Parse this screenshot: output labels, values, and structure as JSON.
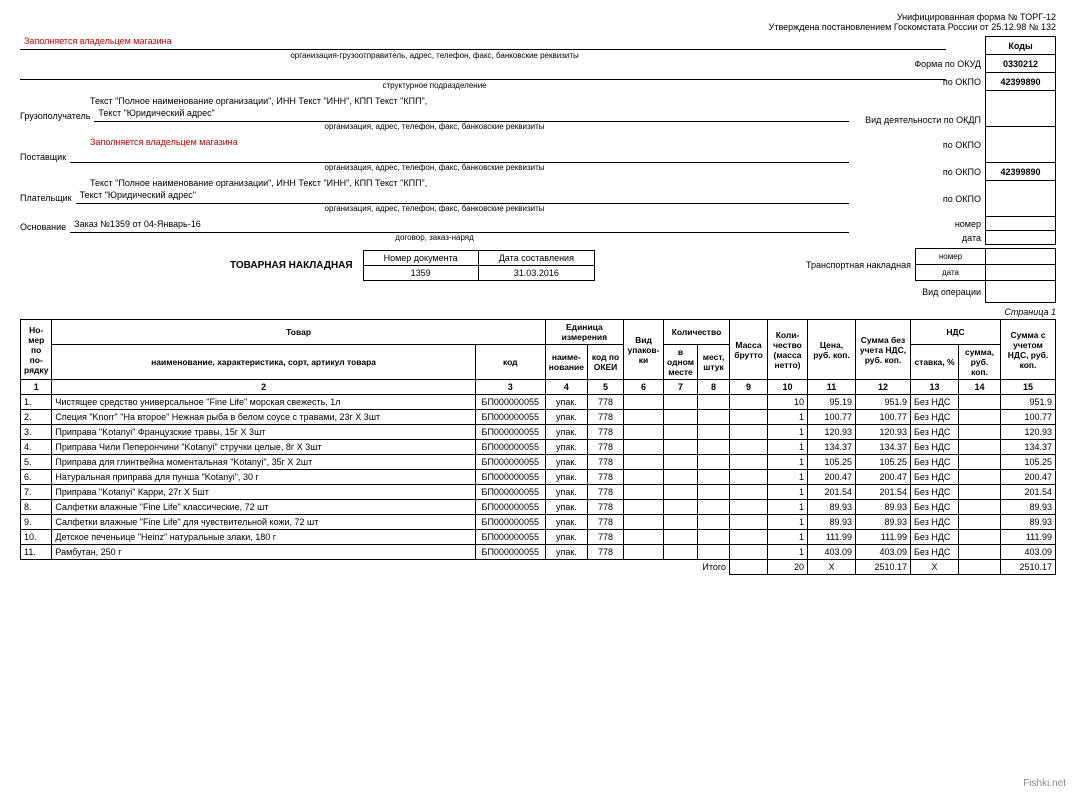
{
  "header": {
    "form_line1": "Унифицированная форма № ТОРГ-12",
    "form_line2": "Утверждена постановлением Госкомстата России от 25.12.98 № 132",
    "codes_title": "Коды",
    "okud_label": "Форма по ОКУД",
    "okud_value": "0330212",
    "okpo_label": "по ОКПО",
    "okpo_value": "42399890",
    "activity_label": "Вид деятельности по ОКДП",
    "okpo2_label": "по ОКПО",
    "okpo3_label": "по ОКПО",
    "okpo3_value": "42399890",
    "okpo4_label": "по ОКПО",
    "number_label": "номер",
    "date_label": "дата",
    "operation_label": "Вид операции"
  },
  "body": {
    "fill_owner": "Заполняется владельцем магазина",
    "org_sender_sub": "организация-грузоотправитель, адрес, телефон, факс, банковские реквизиты",
    "struct_sub": "структурное подразделение",
    "consignee_label": "Грузополучатель",
    "org_full": "Текст \"Полное наименование организации\", ИНН Текст \"ИНН\", КПП Текст \"КПП\",",
    "legal_addr": "Текст \"Юридический адрес\"",
    "org_sub": "организация, адрес, телефон, факс, банковские реквизиты",
    "supplier_label": "Поставщик",
    "payer_label": "Плательщик",
    "basis_label": "Основание",
    "basis_value": "Заказ №1359 от 04-Январь-16",
    "contract_sub": "договор, заказ-наряд",
    "docnum_h1": "Номер документа",
    "docnum_h2": "Дата составления",
    "docnum_v1": "1359",
    "docnum_v2": "31.03.2016",
    "doc_title": "ТОВАРНАЯ НАКЛАДНАЯ",
    "transport_label": "Транспортная накладная"
  },
  "page_label": "Страница 1",
  "table": {
    "headers": {
      "num": "Но-мер по по-рядку",
      "goods": "Товар",
      "name": "наименование, характеристика, сорт, артикул товара",
      "code": "код",
      "unit": "Единица измерения",
      "unit_name": "наиме-нование",
      "okei": "код по ОКЕИ",
      "pack": "Вид упаков-ки",
      "qty": "Количество",
      "qty_one": "в одном месте",
      "qty_places": "мест, штук",
      "mass_gross": "Масса брутто",
      "qty_net": "Коли-чество (масса нетто)",
      "price": "Цена, руб. коп.",
      "sum_novat": "Сумма без учета НДС, руб. коп.",
      "vat": "НДС",
      "vat_rate": "ставка, %",
      "vat_sum": "сумма, руб. коп.",
      "sum_vat": "Сумма с учетом НДС, руб. коп."
    },
    "colnums": [
      "1",
      "2",
      "3",
      "4",
      "5",
      "6",
      "7",
      "8",
      "9",
      "10",
      "11",
      "12",
      "13",
      "14",
      "15"
    ],
    "rows": [
      {
        "n": "1.",
        "name": "Чистящее средство универсальное \"Fine Life\" морская свежесть, 1л",
        "code": "БП000000055",
        "unit": "упак.",
        "okei": "778",
        "q1": "",
        "q2": "",
        "mg": "",
        "net": "10",
        "price": "95.19",
        "sum": "951.9",
        "rate": "Без НДС",
        "vsum": "",
        "total": "951.9"
      },
      {
        "n": "2.",
        "name": "Специя \"Knorr\" \"На второе\" Нежная рыба в белом соусе с травами, 23г X 3шт",
        "code": "БП000000055",
        "unit": "упак.",
        "okei": "778",
        "q1": "",
        "q2": "",
        "mg": "",
        "net": "1",
        "price": "100.77",
        "sum": "100.77",
        "rate": "Без НДС",
        "vsum": "",
        "total": "100.77"
      },
      {
        "n": "3.",
        "name": "Приправа \"Kotanyi\" Французские травы, 15г X 3шт",
        "code": "БП000000055",
        "unit": "упак.",
        "okei": "778",
        "q1": "",
        "q2": "",
        "mg": "",
        "net": "1",
        "price": "120.93",
        "sum": "120.93",
        "rate": "Без НДС",
        "vsum": "",
        "total": "120.93"
      },
      {
        "n": "4.",
        "name": "Приправа Чили Пеперончини \"Kotanyi\" стручки целые, 8г X 3шт",
        "code": "БП000000055",
        "unit": "упак.",
        "okei": "778",
        "q1": "",
        "q2": "",
        "mg": "",
        "net": "1",
        "price": "134.37",
        "sum": "134.37",
        "rate": "Без НДС",
        "vsum": "",
        "total": "134.37"
      },
      {
        "n": "5.",
        "name": "Приправа для глинтвейна моментальная \"Kotanyi\", 35г X 2шт",
        "code": "БП000000055",
        "unit": "упак.",
        "okei": "778",
        "q1": "",
        "q2": "",
        "mg": "",
        "net": "1",
        "price": "105.25",
        "sum": "105.25",
        "rate": "Без НДС",
        "vsum": "",
        "total": "105.25"
      },
      {
        "n": "6.",
        "name": "Натуральная приправа для пунша \"Kotanyi\", 30 г",
        "code": "БП000000055",
        "unit": "упак.",
        "okei": "778",
        "q1": "",
        "q2": "",
        "mg": "",
        "net": "1",
        "price": "200.47",
        "sum": "200.47",
        "rate": "Без НДС",
        "vsum": "",
        "total": "200.47"
      },
      {
        "n": "7.",
        "name": "Приправа \"Kotanyi\" Карри, 27г X 5шт",
        "code": "БП000000055",
        "unit": "упак.",
        "okei": "778",
        "q1": "",
        "q2": "",
        "mg": "",
        "net": "1",
        "price": "201.54",
        "sum": "201.54",
        "rate": "Без НДС",
        "vsum": "",
        "total": "201.54"
      },
      {
        "n": "8.",
        "name": "Салфетки влажные \"Fine Life\" классические, 72 шт",
        "code": "БП000000055",
        "unit": "упак.",
        "okei": "778",
        "q1": "",
        "q2": "",
        "mg": "",
        "net": "1",
        "price": "89.93",
        "sum": "89.93",
        "rate": "Без НДС",
        "vsum": "",
        "total": "89.93"
      },
      {
        "n": "9.",
        "name": "Салфетки влажные \"Fine Life\" для чувствительной кожи, 72 шт",
        "code": "БП000000055",
        "unit": "упак.",
        "okei": "778",
        "q1": "",
        "q2": "",
        "mg": "",
        "net": "1",
        "price": "89.93",
        "sum": "89.93",
        "rate": "Без НДС",
        "vsum": "",
        "total": "89.93"
      },
      {
        "n": "10.",
        "name": "Детское печеньице \"Heinz\" натуральные злаки, 180 г",
        "code": "БП000000055",
        "unit": "упак.",
        "okei": "778",
        "q1": "",
        "q2": "",
        "mg": "",
        "net": "1",
        "price": "111.99",
        "sum": "111.99",
        "rate": "Без НДС",
        "vsum": "",
        "total": "111.99"
      },
      {
        "n": "11.",
        "name": "Рамбутан, 250 г",
        "code": "БП000000055",
        "unit": "упак.",
        "okei": "778",
        "q1": "",
        "q2": "",
        "mg": "",
        "net": "1",
        "price": "403.09",
        "sum": "403.09",
        "rate": "Без НДС",
        "vsum": "",
        "total": "403.09"
      }
    ],
    "total_label": "Итого",
    "totals": {
      "net": "20",
      "price": "X",
      "sum": "2510.17",
      "rate": "X",
      "vsum": "",
      "total": "2510.17"
    }
  },
  "watermark": "Fishki.net"
}
